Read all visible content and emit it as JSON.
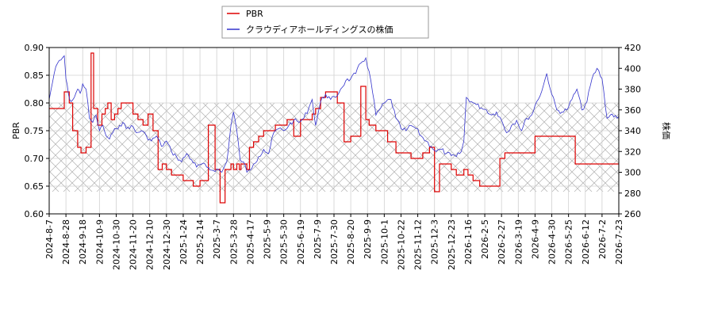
{
  "chart_data": {
    "type": "line",
    "x_ticks": [
      "2024-8-7",
      "2024-8-28",
      "2024-9-18",
      "2024-10-9",
      "2024-10-30",
      "2024-11-20",
      "2024-12-10",
      "2024-12-30",
      "2025-1-24",
      "2025-2-14",
      "2025-3-7",
      "2025-3-28",
      "2025-4-17",
      "2025-5-9",
      "2025-5-30",
      "2025-6-19",
      "2025-7-9",
      "2025-7-30",
      "2025-8-20",
      "2025-9-9",
      "2025-10-1",
      "2025-10-22",
      "2025-11-12",
      "2025-12-3",
      "2025-12-23",
      "2026-1-16",
      "2026-2-5",
      "2026-2-27",
      "2026-3-19",
      "2026-4-9",
      "2026-4-30",
      "2026-5-25",
      "2026-6-12",
      "2026-7-2",
      "2026-7-23"
    ],
    "y_left": {
      "label": "PBR",
      "ticks": [
        "0.60",
        "0.65",
        "0.70",
        "0.75",
        "0.80",
        "0.85",
        "0.90"
      ],
      "range": [
        0.6,
        0.9
      ]
    },
    "y_right": {
      "label": "株価",
      "ticks": [
        "260",
        "280",
        "300",
        "320",
        "340",
        "360",
        "380",
        "400",
        "420"
      ],
      "range": [
        260,
        420
      ]
    },
    "band_left": [
      0.64,
      0.8
    ],
    "grid": true,
    "legend_position": "top-center",
    "series": [
      {
        "name": "PBR",
        "axis": "left",
        "color": "#dd0000",
        "x_at_tick": [
          0,
          0.6,
          0.9,
          1.2,
          1.4,
          1.7,
          1.9,
          2.2,
          2.5,
          2.65,
          2.9,
          3.15,
          3.35,
          3.5,
          3.7,
          3.9,
          4.1,
          4.3,
          4.6,
          5.0,
          5.3,
          5.6,
          5.9,
          6.2,
          6.5,
          6.75,
          7.0,
          7.3,
          7.6,
          7.8,
          8.0,
          8.2,
          8.6,
          9.0,
          9.5,
          9.9,
          10.2,
          10.5,
          10.85,
          11.0,
          11.2,
          11.35,
          11.45,
          11.6,
          11.8,
          11.95,
          12.2,
          12.5,
          12.8,
          13.2,
          13.5,
          13.9,
          14.2,
          14.6,
          15.0,
          15.3,
          15.7,
          15.9,
          16.2,
          16.5,
          16.9,
          17.2,
          17.6,
          18.0,
          18.3,
          18.6,
          18.9,
          19.1,
          19.5,
          19.9,
          20.2,
          20.4,
          20.7,
          21.0,
          21.3,
          21.6,
          22.0,
          22.3,
          22.7,
          23.0,
          23.3,
          23.6,
          24.0,
          24.3,
          24.6,
          24.75,
          25.0,
          25.3,
          25.7,
          26.0,
          26.5,
          26.9,
          27.2,
          27.5,
          27.9,
          28.3,
          28.7,
          29.0,
          29.3,
          29.7,
          30.0,
          30.3,
          30.7,
          31.0,
          31.4,
          31.8,
          32.1,
          32.5,
          32.8,
          33.2,
          33.6,
          34.0,
          34.5
        ],
        "values": [
          0.79,
          0.79,
          0.82,
          0.8,
          0.75,
          0.72,
          0.71,
          0.72,
          0.89,
          0.79,
          0.76,
          0.78,
          0.79,
          0.8,
          0.77,
          0.78,
          0.79,
          0.8,
          0.8,
          0.78,
          0.77,
          0.76,
          0.78,
          0.75,
          0.68,
          0.69,
          0.68,
          0.67,
          0.67,
          0.67,
          0.66,
          0.66,
          0.65,
          0.66,
          0.76,
          0.68,
          0.62,
          0.68,
          0.69,
          0.68,
          0.69,
          0.68,
          0.69,
          0.69,
          0.68,
          0.72,
          0.73,
          0.74,
          0.75,
          0.75,
          0.76,
          0.76,
          0.77,
          0.74,
          0.77,
          0.77,
          0.78,
          0.79,
          0.81,
          0.82,
          0.82,
          0.8,
          0.73,
          0.74,
          0.74,
          0.83,
          0.77,
          0.76,
          0.75,
          0.75,
          0.73,
          0.73,
          0.71,
          0.71,
          0.71,
          0.7,
          0.7,
          0.71,
          0.72,
          0.64,
          0.69,
          0.69,
          0.68,
          0.67,
          0.67,
          0.68,
          0.67,
          0.66,
          0.65,
          0.65,
          0.65,
          0.7,
          0.71,
          0.71,
          0.71,
          0.71,
          0.71,
          0.74,
          0.74,
          0.74,
          0.74,
          0.74,
          0.74,
          0.74,
          0.69,
          0.69,
          0.69,
          0.69,
          0.69,
          0.69,
          0.69,
          0.69,
          0.69
        ]
      },
      {
        "name": "クラウディアホールディングスの株価",
        "axis": "right",
        "color": "#3333cc",
        "x_at_tick": [
          0,
          0.3,
          0.5,
          0.7,
          0.9,
          1.0,
          1.15,
          1.3,
          1.5,
          1.7,
          1.85,
          2.0,
          2.2,
          2.4,
          2.6,
          2.8,
          3.0,
          3.2,
          3.4,
          3.6,
          3.8,
          4.0,
          4.2,
          4.4,
          4.6,
          4.9,
          5.2,
          5.5,
          5.8,
          6.1,
          6.4,
          6.7,
          7.0,
          7.3,
          7.6,
          7.9,
          8.2,
          8.5,
          8.8,
          9.1,
          9.4,
          9.7,
          10.0,
          10.3,
          10.6,
          10.85,
          11.0,
          11.2,
          11.4,
          11.6,
          11.8,
          12.0,
          12.2,
          12.5,
          12.8,
          13.1,
          13.4,
          13.7,
          14.0,
          14.3,
          14.6,
          14.9,
          15.2,
          15.5,
          15.7,
          15.9,
          16.2,
          16.5,
          16.8,
          17.1,
          17.4,
          17.7,
          18.0,
          18.3,
          18.6,
          18.9,
          19.2,
          19.5,
          19.8,
          20.1,
          20.4,
          20.7,
          21.0,
          21.3,
          21.6,
          21.9,
          22.2,
          22.5,
          22.8,
          23.1,
          23.4,
          23.7,
          24.0,
          24.3,
          24.6,
          24.75,
          24.9,
          25.2,
          25.5,
          25.8,
          26.1,
          26.4,
          26.7,
          27.0,
          27.3,
          27.6,
          27.9,
          28.2,
          28.5,
          28.8,
          29.1,
          29.4,
          29.7,
          30.0,
          30.3,
          30.6,
          30.9,
          31.2,
          31.5,
          31.8,
          32.1,
          32.4,
          32.7,
          33.0,
          33.3,
          33.6,
          33.9,
          34.2,
          34.5
        ],
        "values": [
          370,
          395,
          405,
          408,
          412,
          390,
          375,
          368,
          372,
          380,
          376,
          385,
          380,
          352,
          348,
          355,
          340,
          345,
          335,
          332,
          338,
          342,
          345,
          348,
          342,
          345,
          338,
          340,
          335,
          330,
          335,
          325,
          330,
          320,
          315,
          310,
          318,
          312,
          305,
          308,
          305,
          302,
          303,
          300,
          310,
          345,
          358,
          340,
          312,
          310,
          300,
          302,
          308,
          315,
          322,
          318,
          338,
          342,
          340,
          345,
          350,
          348,
          352,
          362,
          370,
          345,
          368,
          375,
          370,
          372,
          380,
          388,
          390,
          395,
          405,
          410,
          388,
          355,
          362,
          368,
          370,
          352,
          342,
          340,
          345,
          342,
          335,
          330,
          325,
          320,
          322,
          318,
          316,
          315,
          320,
          330,
          372,
          368,
          365,
          362,
          360,
          355,
          358,
          350,
          338,
          345,
          350,
          340,
          352,
          355,
          368,
          378,
          395,
          375,
          360,
          358,
          360,
          370,
          380,
          360,
          368,
          390,
          400,
          390,
          352,
          356,
          352,
          355,
          348,
          355,
          352
        ]
      }
    ]
  }
}
